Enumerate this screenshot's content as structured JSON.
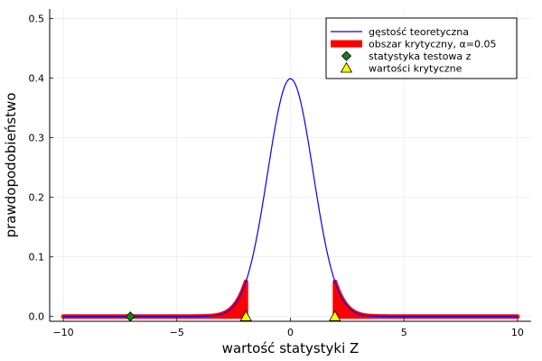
{
  "chart_data": {
    "type": "line",
    "xlabel": "wartość statystyki Z",
    "ylabel": "prawdopodobieństwo",
    "xlim": [
      -10.6,
      10.6
    ],
    "ylim": [
      -0.008,
      0.516
    ],
    "xticks": [
      {
        "value": -10,
        "label": "−10"
      },
      {
        "value": -5,
        "label": "−5"
      },
      {
        "value": 0,
        "label": "0"
      },
      {
        "value": 5,
        "label": "5"
      },
      {
        "value": 10,
        "label": "10"
      }
    ],
    "yticks": [
      {
        "value": 0.0,
        "label": "0.0"
      },
      {
        "value": 0.1,
        "label": "0.1"
      },
      {
        "value": 0.2,
        "label": "0.2"
      },
      {
        "value": 0.3,
        "label": "0.3"
      },
      {
        "value": 0.4,
        "label": "0.4"
      },
      {
        "value": 0.5,
        "label": "0.5"
      }
    ],
    "grid": true,
    "legend_position": "top-right",
    "series": [
      {
        "name": "gęstość teoretyczna",
        "kind": "line",
        "color": "#0000ff",
        "function": "standard_normal_pdf",
        "x_range": [
          -10,
          10
        ]
      },
      {
        "name": "obszar krytyczny, α=0.05",
        "kind": "area",
        "color": "#ff0000",
        "function": "standard_normal_pdf",
        "regions": [
          [
            -10,
            -1.96
          ],
          [
            1.96,
            10
          ]
        ]
      },
      {
        "name": "statystyka testowa z",
        "kind": "scatter",
        "marker": "diamond",
        "color": "#1a7f1a",
        "points": [
          {
            "x": -7.05,
            "y": 0.0
          }
        ]
      },
      {
        "name": "wartości krytyczne",
        "kind": "scatter",
        "marker": "triangle",
        "color": "#ffff00",
        "points": [
          {
            "x": -1.96,
            "y": 0.0
          },
          {
            "x": 1.96,
            "y": 0.0
          }
        ]
      }
    ]
  }
}
